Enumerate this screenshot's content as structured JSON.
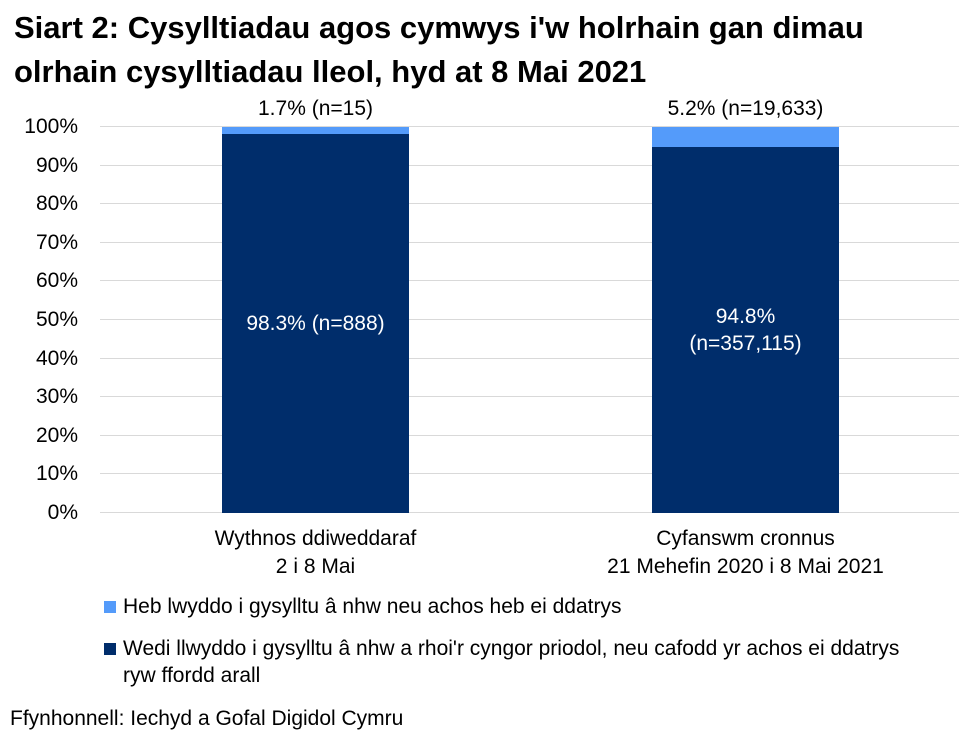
{
  "title": "Siart 2: Cysylltiadau agos cymwys i'w holrhain gan dimau olrhain cysylltiadau lleol, hyd at 8 Mai 2021",
  "source": "Ffynhonnell: Iechyd a Gofal Digidol Cymru",
  "colors": {
    "dark_blue": "#002D6B",
    "light_blue": "#549BFA",
    "gridline": "#D9D9D9"
  },
  "chart_data": {
    "type": "bar",
    "subtype": "stacked-percent",
    "grid": true,
    "legend_position": "bottom",
    "ylim": [
      0,
      100
    ],
    "y_ticks": [
      "0%",
      "10%",
      "20%",
      "30%",
      "40%",
      "50%",
      "60%",
      "70%",
      "80%",
      "90%",
      "100%"
    ],
    "categories": [
      [
        "Wythnos ddiweddaraf",
        "2 i 8 Mai"
      ],
      [
        "Cyfanswm cronnus",
        "21 Mehefin 2020 i 8 Mai 2021"
      ]
    ],
    "series": [
      {
        "name": "Heb lwyddo i gysylltu â nhw neu achos heb ei ddatrys",
        "color": "#549BFA",
        "values": [
          1.7,
          5.2
        ],
        "counts": [
          15,
          19633
        ]
      },
      {
        "name": "Wedi llwyddo i gysylltu â nhw a rhoi'r cyngor priodol, neu cafodd yr achos ei ddatrys ryw ffordd arall",
        "color": "#002D6B",
        "values": [
          98.3,
          94.8
        ],
        "counts": [
          888,
          357115
        ]
      }
    ],
    "top_labels": [
      "1.7% (n=15)",
      "5.2% (n=19,633)"
    ],
    "inner_labels": [
      [
        "98.3% (n=888)"
      ],
      [
        "94.8%",
        "(n=357,115)"
      ]
    ]
  }
}
